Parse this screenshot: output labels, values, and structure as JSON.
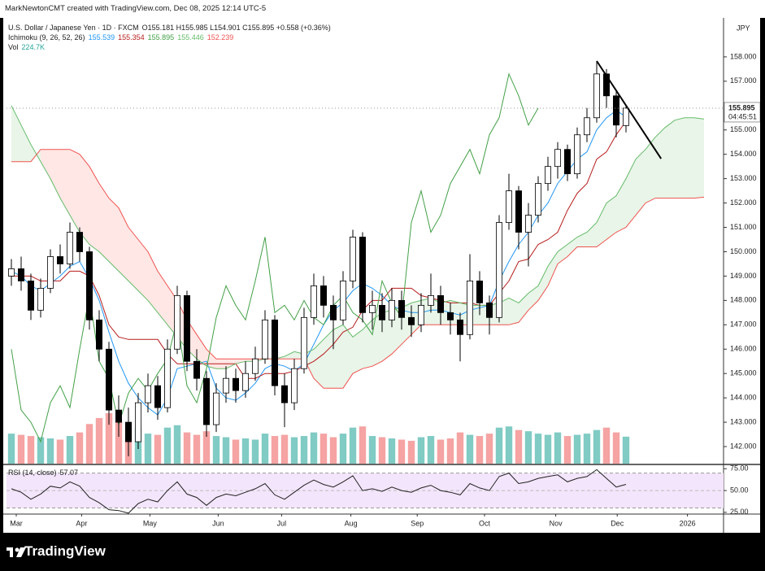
{
  "header": {
    "caption": "MarkNewtonCMT created with TradingView.com, Dec 08, 2025 12:14 UTC-5",
    "symbol": "U.S. Dollar / Japanese Yen · 1D · FXCM",
    "ohlc": "O155.181 H155.985 L154.901 C155.895 +0.558 (+0.36%)",
    "currency": "JPY"
  },
  "footer": {
    "brand": "TradingView"
  },
  "chart_data": [
    {
      "type": "candlestick",
      "ylim": [
        141.3,
        159.6
      ],
      "xlim": [
        -0.5,
        73
      ],
      "yticks": [
        {
          "value": 142,
          "label": "142.000"
        },
        {
          "value": 143,
          "label": "143.000"
        },
        {
          "value": 144,
          "label": "144.000"
        },
        {
          "value": 145,
          "label": "145.000"
        },
        {
          "value": 146,
          "label": "146.000"
        },
        {
          "value": 147,
          "label": "147.000"
        },
        {
          "value": 148,
          "label": "148.000"
        },
        {
          "value": 149,
          "label": "149.000"
        },
        {
          "value": 150,
          "label": "150.000"
        },
        {
          "value": 151,
          "label": "151.000"
        },
        {
          "value": 152,
          "label": "152.000"
        },
        {
          "value": 153,
          "label": "153.000"
        },
        {
          "value": 154,
          "label": "154.000"
        },
        {
          "value": 155,
          "label": "155.000"
        },
        {
          "value": 156,
          "label": "156.000"
        },
        {
          "value": 157,
          "label": "157.000"
        },
        {
          "value": 158,
          "label": "158.000"
        }
      ],
      "xticks": [
        {
          "value": 0.5,
          "label": "Mar"
        },
        {
          "value": 7.2,
          "label": "Apr"
        },
        {
          "value": 14.2,
          "label": "May"
        },
        {
          "value": 21.2,
          "label": "Jun"
        },
        {
          "value": 27.7,
          "label": "Jul"
        },
        {
          "value": 34.8,
          "label": "Aug"
        },
        {
          "value": 41.6,
          "label": "Sep"
        },
        {
          "value": 48.5,
          "label": "Oct"
        },
        {
          "value": 55.8,
          "label": "Nov"
        },
        {
          "value": 62.1,
          "label": "Dec"
        },
        {
          "value": 69.3,
          "label": "2026"
        }
      ],
      "open": [
        149.0,
        149.3,
        148.8,
        147.6,
        148.5,
        149.8,
        149.5,
        150.8,
        150.0,
        147.2,
        146.0,
        143.5,
        143.0,
        142.2,
        143.8,
        144.5,
        143.6,
        146.0,
        148.2,
        145.5,
        144.8,
        142.9,
        144.2,
        144.8,
        144.3,
        145.0,
        145.6,
        147.2,
        144.5,
        143.8,
        145.2,
        147.3,
        148.6,
        147.8,
        147.2,
        148.8,
        150.6,
        147.5,
        147.8,
        147.2,
        148.0,
        147.3,
        147.0,
        147.8,
        148.2,
        147.5,
        147.2,
        146.6,
        148.8,
        147.9,
        147.3,
        151.2,
        152.5,
        150.8,
        151.5,
        152.8,
        153.5,
        154.2,
        153.2,
        154.8,
        155.5,
        157.3,
        156.4,
        155.181
      ],
      "high": [
        149.7,
        149.8,
        149.1,
        148.9,
        150.1,
        150.3,
        151.2,
        151.0,
        150.2,
        147.6,
        146.3,
        144.1,
        143.6,
        144.2,
        145.0,
        144.9,
        146.4,
        148.6,
        148.4,
        146.0,
        145.1,
        144.6,
        145.3,
        145.2,
        145.5,
        146.1,
        147.6,
        147.4,
        145.0,
        145.6,
        147.7,
        149.1,
        149.0,
        148.2,
        149.2,
        150.9,
        150.8,
        148.4,
        148.3,
        148.5,
        148.4,
        147.8,
        148.3,
        149.1,
        148.6,
        147.9,
        147.5,
        149.9,
        149.2,
        148.2,
        151.5,
        153.2,
        152.7,
        152.0,
        153.1,
        153.9,
        154.5,
        154.4,
        155.1,
        155.9,
        157.8,
        157.5,
        156.6,
        155.985
      ],
      "low": [
        148.6,
        148.4,
        147.2,
        147.3,
        148.3,
        149.1,
        149.3,
        149.6,
        146.8,
        145.5,
        142.9,
        142.4,
        141.6,
        141.9,
        143.4,
        143.1,
        143.4,
        145.8,
        145.1,
        144.3,
        142.4,
        142.6,
        143.8,
        143.8,
        144.0,
        144.7,
        145.4,
        144.1,
        142.8,
        143.5,
        145.0,
        147.0,
        147.3,
        146.0,
        147.0,
        148.5,
        147.1,
        146.8,
        146.7,
        146.9,
        146.8,
        146.5,
        146.7,
        147.5,
        147.0,
        146.6,
        145.5,
        146.4,
        147.4,
        146.6,
        147.1,
        150.9,
        150.1,
        149.4,
        151.2,
        152.5,
        153.0,
        152.9,
        153.0,
        154.5,
        155.3,
        155.9,
        154.7,
        154.901
      ],
      "close": [
        149.3,
        148.8,
        147.6,
        148.5,
        149.8,
        149.5,
        150.8,
        150.0,
        147.2,
        146.0,
        143.5,
        143.0,
        142.2,
        143.8,
        144.5,
        143.6,
        146.0,
        148.2,
        145.5,
        144.8,
        142.9,
        144.2,
        144.8,
        144.3,
        145.0,
        145.6,
        147.2,
        144.5,
        143.8,
        145.2,
        147.3,
        148.6,
        147.8,
        147.2,
        148.8,
        150.6,
        147.5,
        147.8,
        147.2,
        148.0,
        147.3,
        147.0,
        147.8,
        148.2,
        147.5,
        147.2,
        146.6,
        148.8,
        147.9,
        147.3,
        151.2,
        152.5,
        150.8,
        151.5,
        152.8,
        153.5,
        154.2,
        153.2,
        154.8,
        155.5,
        157.3,
        156.4,
        155.2,
        155.895
      ],
      "up_color": "#ffffff",
      "down_color": "#000000",
      "border_color": "#000000",
      "last_price": {
        "value": 155.895,
        "label": "155.895"
      },
      "countdown": "04:45:51",
      "trendline": {
        "x": [
          60,
          66.6
        ],
        "y": [
          157.83,
          153.82
        ],
        "color": "#000000"
      },
      "ichimoku": {
        "name": "Ichimoku (9, 26, 52, 26)",
        "cloud_up_color": "rgba(76,175,80,0.13)",
        "cloud_down_color": "rgba(244,67,54,0.13)",
        "series": [
          {
            "color": "#2196f3",
            "legend_value": 155.539,
            "values": [
              149.2,
              149.0,
              148.6,
              148.4,
              148.7,
              149.0,
              149.4,
              149.6,
              148.9,
              148.0,
              146.7,
              145.5,
              144.6,
              144.0,
              143.6,
              143.3,
              144.0,
              145.2,
              145.3,
              145.4,
              145.5,
              144.4,
              144.0,
              143.9,
              144.2,
              144.6,
              145.2,
              145.4,
              145.3,
              145.1,
              145.4,
              146.2,
              147.0,
              147.6,
              147.9,
              148.4,
              148.7,
              148.5,
              148.2,
              147.8,
              147.6,
              147.5,
              147.5,
              147.6,
              147.6,
              147.5,
              147.4,
              147.6,
              147.7,
              147.8,
              148.8,
              149.6,
              150.3,
              150.8,
              151.5,
              152.0,
              152.8,
              153.3,
              153.8,
              154.1,
              155.0,
              155.5,
              155.8,
              155.539,
              null,
              null,
              null,
              null,
              null,
              null,
              null,
              null
            ]
          },
          {
            "color": "#b71c1c",
            "legend_value": 155.354,
            "values": [
              149.0,
              149.0,
              149.0,
              148.8,
              148.8,
              148.8,
              149.2,
              149.2,
              149.0,
              148.2,
              147.0,
              146.5,
              146.4,
              146.4,
              146.4,
              146.4,
              145.8,
              145.4,
              145.4,
              145.4,
              145.4,
              145.4,
              145.4,
              145.4,
              144.8,
              144.8,
              145.0,
              145.0,
              145.0,
              145.1,
              145.3,
              145.5,
              145.8,
              146.2,
              146.7,
              146.9,
              147.6,
              148.0,
              148.0,
              148.5,
              148.5,
              148.5,
              148.2,
              148.1,
              148.0,
              147.9,
              147.9,
              147.9,
              147.8,
              147.8,
              148.3,
              148.8,
              149.6,
              149.7,
              150.3,
              150.5,
              150.8,
              151.7,
              152.4,
              152.8,
              153.8,
              154.1,
              154.8,
              155.354,
              null,
              null,
              null,
              null,
              null,
              null,
              null,
              null
            ]
          },
          {
            "color": "#43a047",
            "legend_value": 155.895,
            "values": [
              146.0,
              143.5,
              143.0,
              142.2,
              143.8,
              144.5,
              143.6,
              146.0,
              148.2,
              145.5,
              144.8,
              142.9,
              144.2,
              144.8,
              144.3,
              145.0,
              145.6,
              147.2,
              144.5,
              143.8,
              145.2,
              147.3,
              148.6,
              147.8,
              147.2,
              148.8,
              150.6,
              147.5,
              147.8,
              147.2,
              148.0,
              147.3,
              147.0,
              147.8,
              148.2,
              147.5,
              147.2,
              146.6,
              148.8,
              147.9,
              147.3,
              151.2,
              152.5,
              150.8,
              151.5,
              152.8,
              153.5,
              154.2,
              153.2,
              154.8,
              155.5,
              157.3,
              156.4,
              155.2,
              155.895,
              null,
              null,
              null,
              null,
              null,
              null,
              null,
              null,
              null,
              null,
              null,
              null,
              null,
              null,
              null,
              null,
              null
            ]
          },
          {
            "color": "#66bb6a",
            "legend_value": 155.446,
            "values": [
              156.0,
              155.2,
              154.4,
              153.7,
              153.0,
              152.2,
              151.5,
              150.8,
              150.3,
              150.0,
              149.6,
              149.2,
              148.8,
              148.4,
              148.0,
              147.5,
              147.0,
              146.5,
              146.0,
              145.6,
              145.3,
              145.2,
              145.2,
              145.4,
              145.5,
              145.5,
              145.6,
              145.6,
              145.7,
              145.9,
              145.8,
              146.0,
              146.4,
              146.8,
              147.0,
              146.5,
              146.8,
              147.2,
              147.5,
              147.6,
              147.7,
              147.9,
              148.0,
              148.1,
              147.9,
              148.0,
              147.9,
              147.8,
              147.8,
              147.8,
              147.9,
              148.1,
              147.9,
              148.3,
              148.6,
              149.4,
              150.0,
              150.3,
              150.6,
              150.8,
              151.2,
              152.0,
              152.3,
              153.0,
              153.8,
              154.2,
              154.7,
              155.1,
              155.4,
              155.5,
              155.5,
              155.446
            ]
          },
          {
            "color": "#ef5350",
            "legend_value": 152.239,
            "values": [
              153.7,
              153.7,
              153.7,
              154.2,
              154.2,
              154.2,
              154.2,
              154.0,
              153.5,
              152.8,
              152.2,
              151.8,
              151.0,
              150.5,
              150.0,
              149.2,
              148.6,
              148.0,
              147.2,
              146.6,
              146.0,
              145.6,
              145.6,
              145.6,
              145.6,
              145.6,
              145.6,
              145.6,
              145.6,
              145.6,
              145.6,
              144.8,
              144.4,
              144.4,
              144.4,
              145.0,
              145.2,
              145.3,
              145.5,
              145.8,
              146.2,
              146.6,
              147.0,
              147.0,
              147.0,
              147.0,
              147.0,
              147.0,
              147.0,
              147.0,
              147.0,
              147.0,
              147.1,
              147.6,
              148.0,
              148.6,
              149.5,
              149.8,
              150.2,
              150.2,
              150.2,
              150.5,
              150.8,
              151.0,
              151.5,
              152.0,
              152.2,
              152.2,
              152.2,
              152.2,
              152.2,
              152.239
            ]
          }
        ]
      }
    },
    {
      "type": "bar",
      "name": "Vol",
      "legend_value": {
        "value": 224.7,
        "label": "224.7K"
      },
      "up_color": "#80cbc4",
      "down_color": "#f5a3a3",
      "values": [
        250,
        240,
        230,
        220,
        210,
        200,
        230,
        260,
        330,
        380,
        420,
        360,
        330,
        300,
        250,
        240,
        300,
        320,
        260,
        240,
        270,
        230,
        220,
        200,
        210,
        200,
        250,
        230,
        240,
        220,
        230,
        260,
        250,
        220,
        250,
        300,
        310,
        230,
        220,
        210,
        200,
        190,
        220,
        230,
        200,
        210,
        260,
        240,
        230,
        250,
        300,
        310,
        280,
        270,
        250,
        240,
        260,
        230,
        240,
        250,
        280,
        300,
        260,
        224.7
      ]
    },
    {
      "type": "line",
      "name": "RSI (14, close)",
      "legend_value": 57.07,
      "color": "#222222",
      "ylim": [
        23,
        79
      ],
      "band": [
        30,
        70
      ],
      "midline": 50,
      "band_color": "#f3e5fb",
      "yticks": [
        {
          "value": 75,
          "label": "75.00"
        },
        {
          "value": 50,
          "label": "50.00"
        },
        {
          "value": 25,
          "label": "25.00"
        }
      ],
      "values": [
        52,
        48,
        40,
        46,
        55,
        53,
        60,
        55,
        42,
        36,
        28,
        27,
        24,
        35,
        40,
        37,
        50,
        60,
        46,
        42,
        33,
        42,
        46,
        44,
        48,
        52,
        58,
        45,
        40,
        48,
        56,
        62,
        57,
        54,
        60,
        67,
        50,
        52,
        49,
        54,
        50,
        48,
        53,
        56,
        50,
        48,
        45,
        58,
        53,
        50,
        66,
        70,
        58,
        60,
        64,
        66,
        68,
        60,
        64,
        66,
        74,
        64,
        54,
        57.07
      ]
    }
  ]
}
